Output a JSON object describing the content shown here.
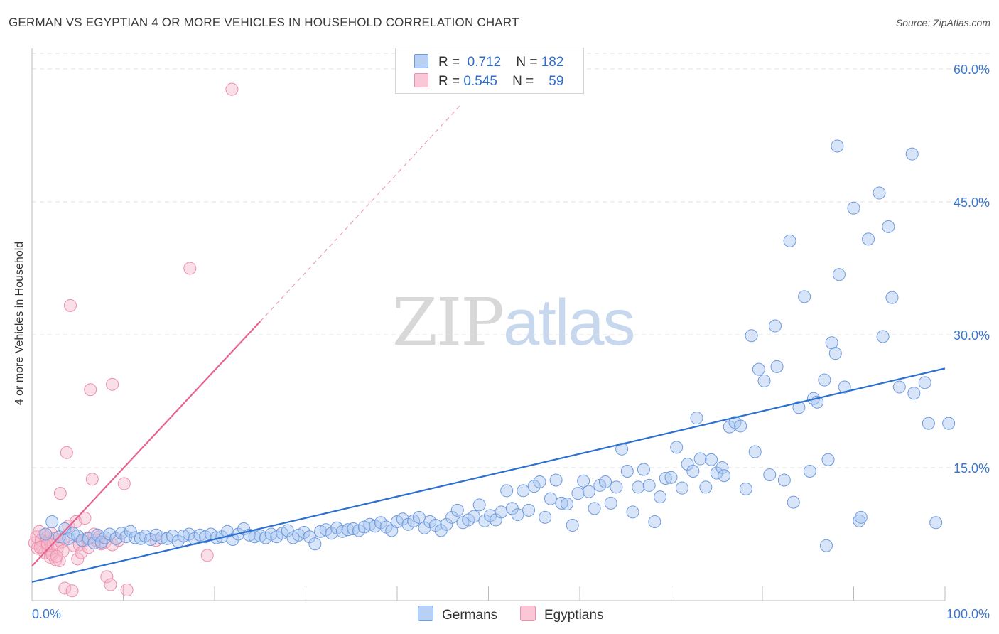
{
  "header": {
    "title": "GERMAN VS EGYPTIAN 4 OR MORE VEHICLES IN HOUSEHOLD CORRELATION CHART",
    "source": "Source: ZipAtlas.com"
  },
  "legend": {
    "rows": [
      {
        "r_label": "R =",
        "r_value": "0.712",
        "n_label": "N =",
        "n_value": "182"
      },
      {
        "r_label": "R =",
        "r_value": "0.545",
        "n_label": "N =",
        "n_value": "59"
      }
    ]
  },
  "bottom_legend": {
    "germans": "Germans",
    "egyptians": "Egyptians"
  },
  "watermark": {
    "zip": "ZIP",
    "atlas": "atlas"
  },
  "colors": {
    "germans_fill": "#a9c5f0",
    "germans_stroke": "#6e9be0",
    "germans_line": "#2b6fd0",
    "egyptians_fill": "#f7b8cb",
    "egyptians_stroke": "#ec8fac",
    "egyptians_line": "#e8638d",
    "tick_text": "#3a78d0",
    "grid": "#e2e2e2"
  },
  "chart_data": {
    "type": "scatter",
    "title": "GERMAN VS EGYPTIAN 4 OR MORE VEHICLES IN HOUSEHOLD CORRELATION CHART",
    "xlabel": "",
    "ylabel": "4 or more Vehicles in Household",
    "xlim": [
      0,
      100
    ],
    "ylim": [
      0,
      62
    ],
    "x_tick_labels": [
      "0.0%",
      "100.0%"
    ],
    "y_ticks": [
      15,
      30,
      45,
      60
    ],
    "y_tick_labels": [
      "15.0%",
      "30.0%",
      "45.0%",
      "60.0%"
    ],
    "grid": true,
    "legend_position": "top-center",
    "series": [
      {
        "name": "Germans",
        "r": 0.712,
        "n": 182,
        "trend": {
          "x": [
            0,
            100
          ],
          "y": [
            2.1,
            26.2
          ]
        },
        "points": [
          [
            1.5,
            7.5
          ],
          [
            2.2,
            8.9
          ],
          [
            3.0,
            7.2
          ],
          [
            3.6,
            8.1
          ],
          [
            4.0,
            7.0
          ],
          [
            4.5,
            7.6
          ],
          [
            5.0,
            7.3
          ],
          [
            5.5,
            6.8
          ],
          [
            6.2,
            7.0
          ],
          [
            6.8,
            6.5
          ],
          [
            7.2,
            7.4
          ],
          [
            7.6,
            6.6
          ],
          [
            8.0,
            7.1
          ],
          [
            8.5,
            7.5
          ],
          [
            9.2,
            7.0
          ],
          [
            9.8,
            7.6
          ],
          [
            10.3,
            7.2
          ],
          [
            10.8,
            7.8
          ],
          [
            11.3,
            7.1
          ],
          [
            11.9,
            7.0
          ],
          [
            12.4,
            7.3
          ],
          [
            13.0,
            6.9
          ],
          [
            13.6,
            7.4
          ],
          [
            14.2,
            7.1
          ],
          [
            14.8,
            7.0
          ],
          [
            15.4,
            7.3
          ],
          [
            16.0,
            6.7
          ],
          [
            16.6,
            7.3
          ],
          [
            17.2,
            7.5
          ],
          [
            17.8,
            7.0
          ],
          [
            18.4,
            7.4
          ],
          [
            19.0,
            7.2
          ],
          [
            19.6,
            7.5
          ],
          [
            20.2,
            7.1
          ],
          [
            20.8,
            7.2
          ],
          [
            21.4,
            7.8
          ],
          [
            22.0,
            6.9
          ],
          [
            22.6,
            7.5
          ],
          [
            23.2,
            8.1
          ],
          [
            23.8,
            7.4
          ],
          [
            24.4,
            7.2
          ],
          [
            25.0,
            7.3
          ],
          [
            25.6,
            7.1
          ],
          [
            26.2,
            7.5
          ],
          [
            26.8,
            7.2
          ],
          [
            27.4,
            7.6
          ],
          [
            28.0,
            7.9
          ],
          [
            28.6,
            7.1
          ],
          [
            29.2,
            7.4
          ],
          [
            29.8,
            7.7
          ],
          [
            30.4,
            7.2
          ],
          [
            31.0,
            6.4
          ],
          [
            31.6,
            7.8
          ],
          [
            32.2,
            8.0
          ],
          [
            32.8,
            7.6
          ],
          [
            33.4,
            8.2
          ],
          [
            34.0,
            7.8
          ],
          [
            34.6,
            8.0
          ],
          [
            35.2,
            8.1
          ],
          [
            35.8,
            7.9
          ],
          [
            36.4,
            8.3
          ],
          [
            37.0,
            8.6
          ],
          [
            37.6,
            8.4
          ],
          [
            38.2,
            8.8
          ],
          [
            38.8,
            8.3
          ],
          [
            39.4,
            7.9
          ],
          [
            40.0,
            8.9
          ],
          [
            40.6,
            9.2
          ],
          [
            41.2,
            8.6
          ],
          [
            41.8,
            9.0
          ],
          [
            42.4,
            9.4
          ],
          [
            43.0,
            8.2
          ],
          [
            43.6,
            8.9
          ],
          [
            44.2,
            8.5
          ],
          [
            44.8,
            7.9
          ],
          [
            45.4,
            8.6
          ],
          [
            46.0,
            9.4
          ],
          [
            46.6,
            10.2
          ],
          [
            47.2,
            8.8
          ],
          [
            47.8,
            9.1
          ],
          [
            48.4,
            9.5
          ],
          [
            49.0,
            10.8
          ],
          [
            49.6,
            9.0
          ],
          [
            50.2,
            9.6
          ],
          [
            50.8,
            9.1
          ],
          [
            51.4,
            10.0
          ],
          [
            52.0,
            12.4
          ],
          [
            52.6,
            10.4
          ],
          [
            53.2,
            9.7
          ],
          [
            53.8,
            12.4
          ],
          [
            54.4,
            10.2
          ],
          [
            55.0,
            12.9
          ],
          [
            55.6,
            13.4
          ],
          [
            56.2,
            9.4
          ],
          [
            56.8,
            11.5
          ],
          [
            57.4,
            13.6
          ],
          [
            58.0,
            11.0
          ],
          [
            58.6,
            10.9
          ],
          [
            59.2,
            8.5
          ],
          [
            59.8,
            12.1
          ],
          [
            60.4,
            13.5
          ],
          [
            61.0,
            12.3
          ],
          [
            61.6,
            10.4
          ],
          [
            62.2,
            13.0
          ],
          [
            62.8,
            13.4
          ],
          [
            63.4,
            11.0
          ],
          [
            64.0,
            12.8
          ],
          [
            64.6,
            17.1
          ],
          [
            65.2,
            14.6
          ],
          [
            65.8,
            10.0
          ],
          [
            66.4,
            12.8
          ],
          [
            67.0,
            14.8
          ],
          [
            67.6,
            13.0
          ],
          [
            68.2,
            8.9
          ],
          [
            68.8,
            11.7
          ],
          [
            69.4,
            13.8
          ],
          [
            70.0,
            13.9
          ],
          [
            70.6,
            17.3
          ],
          [
            71.2,
            12.7
          ],
          [
            71.8,
            15.4
          ],
          [
            72.4,
            14.6
          ],
          [
            72.8,
            20.6
          ],
          [
            73.2,
            16.0
          ],
          [
            73.8,
            12.8
          ],
          [
            74.4,
            15.9
          ],
          [
            75.0,
            14.4
          ],
          [
            75.6,
            15.0
          ],
          [
            75.8,
            14.1
          ],
          [
            76.4,
            19.6
          ],
          [
            77.0,
            20.1
          ],
          [
            77.6,
            19.7
          ],
          [
            78.2,
            12.6
          ],
          [
            78.8,
            29.9
          ],
          [
            79.2,
            16.8
          ],
          [
            79.6,
            26.1
          ],
          [
            80.2,
            24.8
          ],
          [
            80.8,
            14.2
          ],
          [
            81.4,
            31.0
          ],
          [
            81.6,
            26.4
          ],
          [
            82.4,
            13.6
          ],
          [
            83.0,
            40.6
          ],
          [
            83.4,
            11.1
          ],
          [
            84.0,
            21.8
          ],
          [
            84.6,
            34.3
          ],
          [
            85.2,
            14.6
          ],
          [
            85.6,
            22.8
          ],
          [
            86.0,
            22.4
          ],
          [
            86.8,
            24.9
          ],
          [
            87.2,
            15.9
          ],
          [
            87.6,
            29.1
          ],
          [
            88.0,
            27.9
          ],
          [
            88.4,
            36.8
          ],
          [
            88.2,
            51.3
          ],
          [
            89.0,
            24.1
          ],
          [
            90.0,
            44.3
          ],
          [
            90.6,
            9.0
          ],
          [
            90.8,
            9.4
          ],
          [
            91.6,
            40.8
          ],
          [
            92.8,
            46.0
          ],
          [
            93.2,
            29.8
          ],
          [
            93.8,
            42.2
          ],
          [
            94.2,
            34.2
          ],
          [
            95.0,
            24.1
          ],
          [
            96.4,
            50.4
          ],
          [
            96.6,
            23.4
          ],
          [
            97.8,
            24.6
          ],
          [
            98.2,
            20.0
          ],
          [
            99.0,
            8.8
          ],
          [
            100.4,
            20.0
          ],
          [
            87.0,
            6.2
          ]
        ]
      },
      {
        "name": "Egyptians",
        "r": 0.545,
        "n": 59,
        "trend": {
          "x": [
            0,
            25.0
          ],
          "y": [
            3.9,
            31.5
          ]
        },
        "trend_extension": {
          "x": [
            25.0,
            47.0
          ],
          "y": [
            31.5,
            56.0
          ]
        },
        "points": [
          [
            0.3,
            6.5
          ],
          [
            0.5,
            7.2
          ],
          [
            0.6,
            5.9
          ],
          [
            0.8,
            7.8
          ],
          [
            1.0,
            6.8
          ],
          [
            1.1,
            6.1
          ],
          [
            1.3,
            7.4
          ],
          [
            1.4,
            5.4
          ],
          [
            1.5,
            6.6
          ],
          [
            1.6,
            7.1
          ],
          [
            1.8,
            5.8
          ],
          [
            1.9,
            6.9
          ],
          [
            2.0,
            4.9
          ],
          [
            2.1,
            7.6
          ],
          [
            2.2,
            5.2
          ],
          [
            2.3,
            6.4
          ],
          [
            2.5,
            7.0
          ],
          [
            2.6,
            4.6
          ],
          [
            2.8,
            6.0
          ],
          [
            3.0,
            4.5
          ],
          [
            3.1,
            12.1
          ],
          [
            3.2,
            6.6
          ],
          [
            3.4,
            5.6
          ],
          [
            3.5,
            7.1
          ],
          [
            3.6,
            1.4
          ],
          [
            3.8,
            16.7
          ],
          [
            4.0,
            8.4
          ],
          [
            4.2,
            33.3
          ],
          [
            4.4,
            1.1
          ],
          [
            4.6,
            6.2
          ],
          [
            4.8,
            8.9
          ],
          [
            5.0,
            4.7
          ],
          [
            5.2,
            6.3
          ],
          [
            5.4,
            5.4
          ],
          [
            5.6,
            6.7
          ],
          [
            5.8,
            9.3
          ],
          [
            6.0,
            7.0
          ],
          [
            6.2,
            6.0
          ],
          [
            6.4,
            23.8
          ],
          [
            6.6,
            13.7
          ],
          [
            6.8,
            7.5
          ],
          [
            7.0,
            6.8
          ],
          [
            7.4,
            7.2
          ],
          [
            7.6,
            6.4
          ],
          [
            8.0,
            6.6
          ],
          [
            8.2,
            2.7
          ],
          [
            8.6,
            1.8
          ],
          [
            8.8,
            24.4
          ],
          [
            8.8,
            6.3
          ],
          [
            9.5,
            6.8
          ],
          [
            10.1,
            13.2
          ],
          [
            10.4,
            1.2
          ],
          [
            13.6,
            6.8
          ],
          [
            17.3,
            37.5
          ],
          [
            19.2,
            5.1
          ],
          [
            21.9,
            57.7
          ],
          [
            0.9,
            6.0
          ],
          [
            2.7,
            5.0
          ],
          [
            1.7,
            6.4
          ]
        ]
      }
    ]
  }
}
